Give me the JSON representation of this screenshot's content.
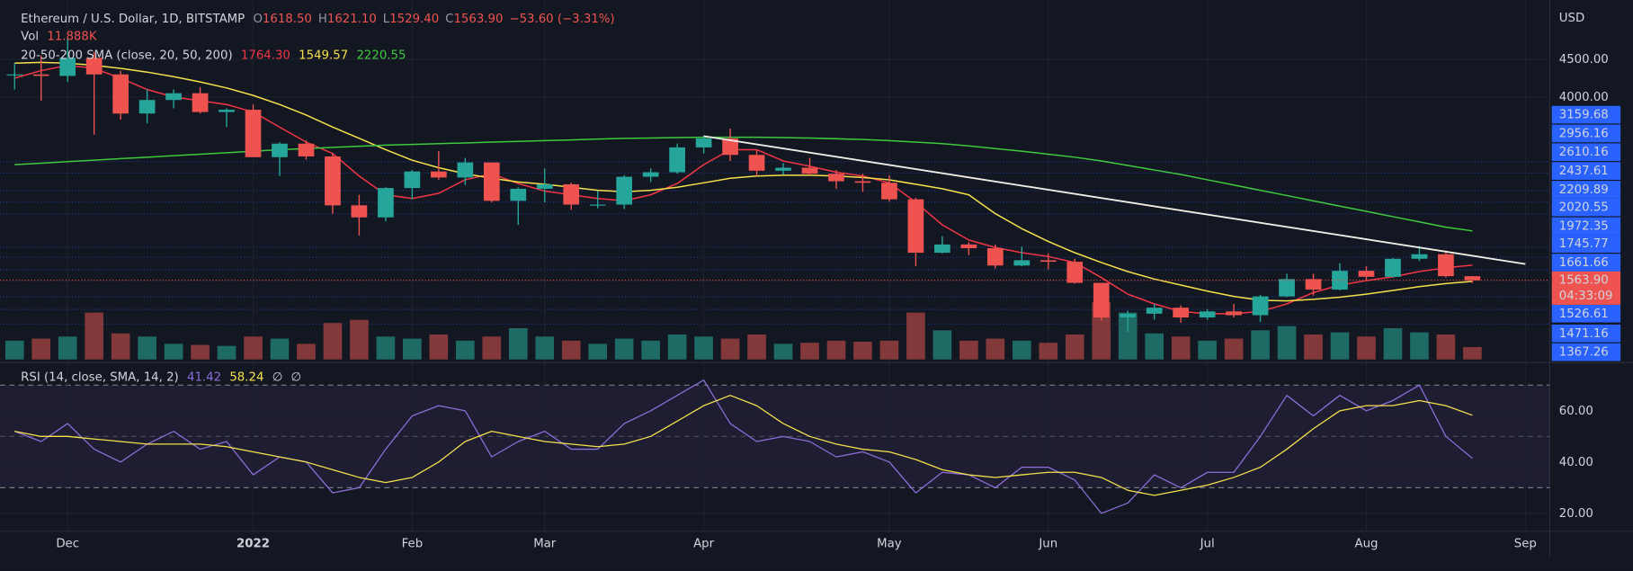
{
  "chart_data": {
    "type": "candlestick",
    "header": {
      "title": "Ethereum / U.S. Dollar, 1D, BITSTAMP",
      "ohlc": [
        {
          "label": "O",
          "value": "1618.50"
        },
        {
          "label": "H",
          "value": "1621.10"
        },
        {
          "label": "L",
          "value": "1529.40"
        },
        {
          "label": "C",
          "value": "1563.90"
        }
      ],
      "change": "−53.60 (−3.31%)"
    },
    "currency": "USD",
    "categories": [
      null,
      null,
      "Dec",
      null,
      null,
      null,
      null,
      null,
      null,
      "2022",
      null,
      null,
      null,
      null,
      null,
      "Feb",
      null,
      null,
      null,
      null,
      "Mar",
      null,
      null,
      null,
      null,
      null,
      "Apr",
      null,
      null,
      null,
      null,
      null,
      null,
      "May",
      null,
      null,
      null,
      null,
      null,
      "Jun",
      null,
      null,
      null,
      null,
      null,
      "Jul",
      null,
      null,
      null,
      null,
      null,
      "Aug",
      null,
      null,
      null,
      null,
      null,
      "Sep"
    ],
    "open": [
      4290,
      4300,
      4280,
      4520,
      4300,
      3780,
      3960,
      4050,
      3800,
      3830,
      3200,
      3380,
      3210,
      2560,
      2400,
      2790,
      3010,
      2930,
      3130,
      2620,
      2780,
      2840,
      2570,
      2570,
      2940,
      3000,
      3330,
      3450,
      3230,
      3020,
      3060,
      2980,
      2880,
      2860,
      2640,
      1930,
      2040,
      1990,
      1760,
      1830,
      1810,
      1530,
      1070,
      1120,
      1200,
      1070,
      1150,
      1100,
      1350,
      1580,
      1440,
      1690,
      1610,
      1850,
      1910,
      1618.5,
      null,
      null
    ],
    "high": [
      4450,
      4550,
      4780,
      4600,
      4350,
      4100,
      4100,
      4130,
      3850,
      3900,
      3400,
      3420,
      3250,
      2700,
      2800,
      3030,
      3280,
      3190,
      3130,
      2800,
      3050,
      2860,
      2750,
      2960,
      3050,
      3380,
      3480,
      3580,
      3290,
      3120,
      3190,
      3030,
      2980,
      2960,
      2660,
      2150,
      2070,
      2040,
      2010,
      1920,
      1850,
      1530,
      1160,
      1250,
      1230,
      1180,
      1250,
      1370,
      1650,
      1650,
      1790,
      1750,
      1860,
      2020,
      1960,
      1621.1,
      null,
      null
    ],
    "low": [
      4100,
      3950,
      4200,
      3500,
      3700,
      3650,
      3850,
      3780,
      3600,
      3200,
      2950,
      3170,
      2450,
      2160,
      2350,
      2640,
      2900,
      2830,
      2600,
      2300,
      2600,
      2500,
      2520,
      2510,
      2870,
      2980,
      3250,
      3150,
      2950,
      2970,
      2960,
      2780,
      2740,
      2610,
      1750,
      1920,
      1900,
      1720,
      1750,
      1710,
      1520,
      1030,
      880,
      1040,
      1000,
      1040,
      1070,
      1010,
      1340,
      1360,
      1430,
      1560,
      1600,
      1820,
      1600,
      1529.4,
      null,
      null
    ],
    "close": [
      4300,
      4280,
      4520,
      4300,
      3780,
      3960,
      4050,
      3800,
      3830,
      3200,
      3380,
      3210,
      2560,
      2400,
      2790,
      3010,
      2930,
      3130,
      2620,
      2780,
      2840,
      2570,
      2570,
      2940,
      3000,
      3330,
      3450,
      3230,
      3020,
      3060,
      2980,
      2880,
      2860,
      2640,
      1930,
      2040,
      1990,
      1760,
      1830,
      1810,
      1530,
      1070,
      1120,
      1200,
      1070,
      1150,
      1100,
      1350,
      1580,
      1440,
      1690,
      1610,
      1850,
      1910,
      1618.5,
      1563.9,
      null,
      null
    ],
    "up_color": "#26a69a",
    "down_color": "#ef5350",
    "ylim": [
      512,
      5287
    ],
    "yticks": [
      {
        "value": 4500,
        "label": "4500.00"
      },
      {
        "value": 4000,
        "label": "4000.00"
      }
    ],
    "last_price_label": "1563.90",
    "countdown": "04:33:09",
    "level_labels": [
      "3159.68",
      "2956.16",
      "2610.16",
      "2437.61",
      "2209.89",
      "2020.55",
      "1972.35",
      "1745.77",
      "1661.66",
      "1526.61",
      "1471.16",
      "1367.26"
    ],
    "level_color": "#2962ff",
    "sma_legend": "20-50-200 SMA (close, 20, 50, 200)",
    "series": [
      {
        "color": "#f23645",
        "value_label": "1764.30",
        "values": [
          4250,
          4350,
          4420,
          4380,
          4250,
          4100,
          4000,
          3950,
          3900,
          3800,
          3600,
          3400,
          3250,
          2950,
          2700,
          2650,
          2720,
          2900,
          2980,
          2850,
          2750,
          2700,
          2650,
          2620,
          2700,
          2850,
          3100,
          3300,
          3300,
          3150,
          3080,
          3000,
          2950,
          2860,
          2600,
          2300,
          2100,
          2000,
          1930,
          1880,
          1800,
          1600,
          1380,
          1250,
          1150,
          1120,
          1120,
          1150,
          1250,
          1400,
          1500,
          1560,
          1610,
          1680,
          1730,
          1764.3,
          null,
          null
        ]
      },
      {
        "color": "#f5e14b",
        "value_label": "1549.57",
        "values": [
          4450,
          4460,
          4450,
          4420,
          4380,
          4330,
          4270,
          4200,
          4120,
          4020,
          3900,
          3760,
          3600,
          3450,
          3300,
          3160,
          3060,
          2980,
          2920,
          2870,
          2840,
          2800,
          2760,
          2740,
          2760,
          2800,
          2860,
          2920,
          2950,
          2960,
          2960,
          2950,
          2930,
          2900,
          2840,
          2780,
          2700,
          2450,
          2250,
          2080,
          1930,
          1800,
          1680,
          1580,
          1500,
          1420,
          1350,
          1300,
          1290,
          1310,
          1340,
          1380,
          1430,
          1480,
          1520,
          1549.57,
          null,
          null
        ]
      },
      {
        "color": "#3fc93f",
        "value_label": "2220.55",
        "values": [
          3100,
          3120,
          3140,
          3160,
          3180,
          3200,
          3220,
          3240,
          3260,
          3280,
          3300,
          3315,
          3330,
          3345,
          3360,
          3370,
          3380,
          3390,
          3400,
          3410,
          3420,
          3430,
          3440,
          3450,
          3455,
          3460,
          3465,
          3465,
          3465,
          3460,
          3455,
          3445,
          3435,
          3420,
          3400,
          3380,
          3350,
          3315,
          3280,
          3240,
          3200,
          3150,
          3090,
          3030,
          2970,
          2900,
          2830,
          2760,
          2690,
          2620,
          2550,
          2480,
          2410,
          2340,
          2270,
          2220.55,
          null,
          null
        ]
      }
    ],
    "trendline": {
      "color": "#f0efe6",
      "x": [
        26,
        57
      ],
      "values": [
        3480,
        1780
      ]
    },
    "volume": {
      "name": "Vol",
      "value_label": "11.888K",
      "values": [
        18,
        20,
        22,
        45,
        25,
        22,
        15,
        14,
        13,
        22,
        20,
        15,
        35,
        38,
        22,
        20,
        24,
        18,
        22,
        30,
        22,
        18,
        15,
        20,
        18,
        24,
        22,
        20,
        24,
        15,
        16,
        18,
        17,
        18,
        45,
        28,
        18,
        20,
        18,
        16,
        24,
        55,
        45,
        25,
        22,
        18,
        20,
        28,
        32,
        24,
        26,
        22,
        30,
        26,
        24,
        11.888,
        null,
        null
      ],
      "ylim": [
        0,
        60
      ],
      "up_color": "#1e6a64",
      "down_color": "#833939"
    },
    "rsi": {
      "legend": "RSI (14, close, SMA, 14, 2)",
      "value_labels": [
        "41.42",
        "58.24",
        "∅",
        "∅"
      ],
      "ylim": [
        13,
        78
      ],
      "yticks": [
        {
          "value": 60,
          "label": "60.00"
        },
        {
          "value": 40,
          "label": "40.00"
        },
        {
          "value": 20,
          "label": "20.00"
        }
      ],
      "band": [
        30,
        70
      ],
      "middle": 50,
      "series": [
        {
          "color": "#8c6fd9",
          "values": [
            52,
            48,
            55,
            45,
            40,
            47,
            52,
            45,
            48,
            35,
            42,
            40,
            28,
            30,
            45,
            58,
            62,
            60,
            42,
            48,
            52,
            45,
            45,
            55,
            60,
            66,
            72,
            55,
            48,
            50,
            48,
            42,
            44,
            40,
            28,
            36,
            35,
            30,
            38,
            38,
            33,
            20,
            24,
            35,
            30,
            36,
            36,
            50,
            66,
            58,
            66,
            60,
            64,
            70,
            50,
            41.42,
            null,
            null
          ]
        },
        {
          "color": "#f5e14b",
          "values": [
            52,
            50,
            50,
            49,
            48,
            47,
            47,
            47,
            46,
            44,
            42,
            40,
            37,
            34,
            32,
            34,
            40,
            48,
            52,
            50,
            48,
            47,
            46,
            47,
            50,
            56,
            62,
            66,
            62,
            55,
            50,
            47,
            45,
            44,
            41,
            37,
            35,
            34,
            35,
            36,
            36,
            34,
            29,
            27,
            29,
            31,
            34,
            38,
            45,
            53,
            60,
            62,
            62,
            64,
            62,
            58.24,
            null,
            null
          ]
        }
      ]
    }
  }
}
